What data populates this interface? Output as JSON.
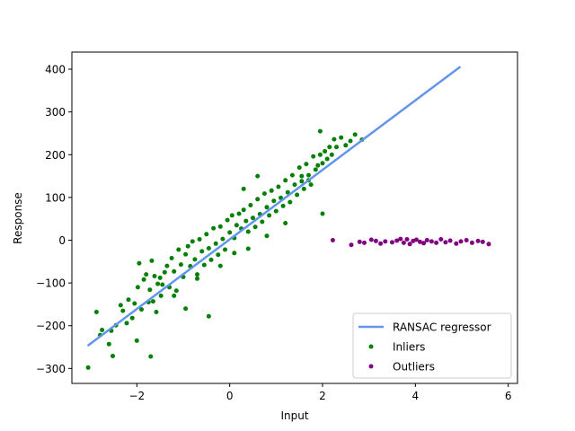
{
  "chart_data": {
    "type": "scatter",
    "xlabel": "Input",
    "ylabel": "Response",
    "xlim": [
      -3.4,
      6.2
    ],
    "ylim": [
      -335,
      440
    ],
    "x_ticks": [
      -2,
      0,
      2,
      4,
      6
    ],
    "x_tick_labels": [
      "−2",
      "0",
      "2",
      "4",
      "6"
    ],
    "y_ticks": [
      -300,
      -200,
      -100,
      0,
      100,
      200,
      300,
      400
    ],
    "y_tick_labels": [
      "−300",
      "−200",
      "−100",
      "0",
      "100",
      "200",
      "300",
      "400"
    ],
    "grid": false,
    "legend_position": "lower-right",
    "legend": [
      {
        "label": "RANSAC regressor",
        "kind": "line",
        "color": "#6495ed"
      },
      {
        "label": "Inliers",
        "kind": "marker",
        "color": "#008000"
      },
      {
        "label": "Outliers",
        "kind": "marker",
        "color": "#800080"
      }
    ],
    "series": [
      {
        "name": "RANSAC regressor",
        "kind": "line",
        "color": "#6495ed",
        "x": [
          -3.06,
          4.97
        ],
        "y": [
          -247,
          406
        ]
      },
      {
        "name": "Inliers",
        "kind": "scatter",
        "color": "#008000",
        "x": [
          -3.05,
          -2.87,
          -2.79,
          -2.75,
          -2.6,
          -2.55,
          -2.52,
          -2.45,
          -2.35,
          -2.3,
          -2.22,
          -2.18,
          -2.1,
          -2.05,
          -1.98,
          -1.95,
          -1.9,
          -1.85,
          -1.8,
          -1.75,
          -1.72,
          -1.68,
          -1.65,
          -1.62,
          -1.58,
          -1.55,
          -1.5,
          -1.48,
          -1.45,
          -1.4,
          -1.35,
          -1.3,
          -1.25,
          -1.2,
          -1.15,
          -1.1,
          -1.05,
          -1.0,
          -0.95,
          -0.9,
          -0.85,
          -0.8,
          -0.75,
          -0.7,
          -0.65,
          -0.6,
          -0.55,
          -0.5,
          -0.45,
          -0.4,
          -0.35,
          -0.3,
          -0.25,
          -0.2,
          -0.15,
          -0.1,
          -0.05,
          0.0,
          0.05,
          0.1,
          0.15,
          0.2,
          0.25,
          0.3,
          0.35,
          0.4,
          0.45,
          0.5,
          0.55,
          0.6,
          0.65,
          0.7,
          0.75,
          0.8,
          0.85,
          0.9,
          0.95,
          1.0,
          1.05,
          1.1,
          1.15,
          1.2,
          1.25,
          1.3,
          1.35,
          1.4,
          1.45,
          1.5,
          1.55,
          1.6,
          1.65,
          1.7,
          1.75,
          1.8,
          1.85,
          1.9,
          1.95,
          2.0,
          2.05,
          2.1,
          2.15,
          2.2,
          2.25,
          2.3,
          2.4,
          2.5,
          2.6,
          2.7,
          2.85,
          -1.7,
          -0.45,
          1.55,
          1.95,
          2.0,
          -1.2,
          -0.2,
          0.3,
          0.8,
          1.2,
          -0.95,
          0.1,
          0.6,
          1.7,
          -2.0,
          -0.7,
          0.4
        ],
        "y": [
          -298,
          -168,
          -222,
          -210,
          -243,
          -212,
          -271,
          -199,
          -152,
          -165,
          -194,
          -139,
          -182,
          -148,
          -110,
          -54,
          -162,
          -92,
          -80,
          -145,
          -116,
          -48,
          -143,
          -84,
          -168,
          -102,
          -88,
          -130,
          -104,
          -75,
          -60,
          -110,
          -42,
          -73,
          -118,
          -22,
          -57,
          -86,
          -33,
          -14,
          -61,
          -3,
          -45,
          -80,
          2,
          -26,
          -58,
          14,
          -19,
          -46,
          28,
          -8,
          -34,
          32,
          3,
          -22,
          47,
          18,
          58,
          5,
          35,
          62,
          27,
          71,
          45,
          20,
          82,
          52,
          31,
          96,
          61,
          43,
          109,
          77,
          58,
          116,
          92,
          68,
          125,
          99,
          80,
          140,
          112,
          89,
          152,
          130,
          106,
          170,
          138,
          120,
          178,
          152,
          130,
          196,
          165,
          175,
          200,
          180,
          208,
          190,
          218,
          200,
          236,
          218,
          240,
          222,
          232,
          247,
          235,
          -272,
          -178,
          150,
          255,
          62,
          -130,
          -60,
          120,
          10,
          40,
          -160,
          -30,
          150,
          140,
          -235,
          -90,
          -20
        ]
      },
      {
        "name": "Outliers",
        "kind": "scatter",
        "color": "#800080",
        "x": [
          2.22,
          2.62,
          2.8,
          2.9,
          3.05,
          3.15,
          3.25,
          3.35,
          3.5,
          3.6,
          3.68,
          3.75,
          3.82,
          3.88,
          3.95,
          4.02,
          4.1,
          4.18,
          4.25,
          4.35,
          4.45,
          4.55,
          4.65,
          4.75,
          4.88,
          4.98,
          5.1,
          5.22,
          5.35,
          5.45,
          5.58
        ],
        "y": [
          0,
          -11,
          -4,
          -6,
          1,
          -2,
          -8,
          -3,
          -5,
          -1,
          3,
          -6,
          2,
          -9,
          -2,
          1,
          -4,
          -7,
          0,
          -3,
          -6,
          2,
          -5,
          -1,
          -8,
          -3,
          0,
          -6,
          -2,
          -4,
          -9
        ]
      }
    ]
  }
}
